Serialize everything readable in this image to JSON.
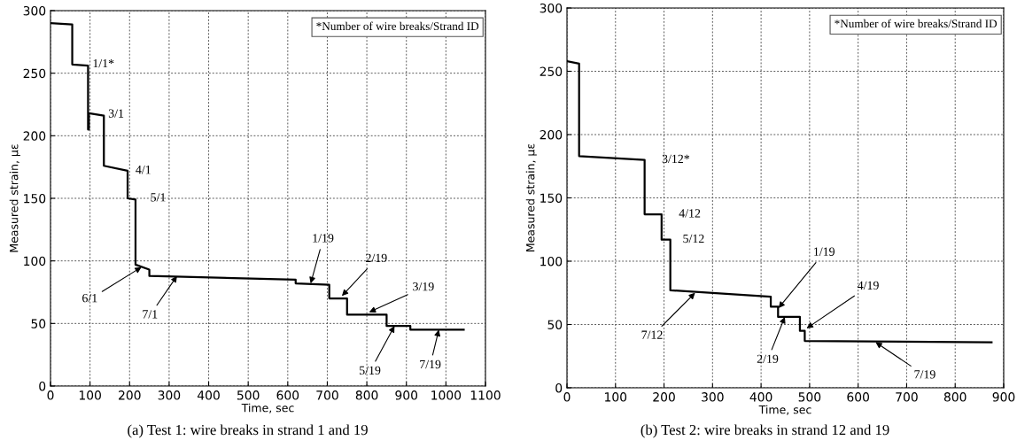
{
  "chart_data": [
    {
      "type": "line",
      "title": "(a) Test 1: wire breaks in strand 1 and 19",
      "xlabel": "Time, sec",
      "ylabel": "Measured strain, με",
      "series": [
        {
          "color": "#000000",
          "x": [
            0,
            55,
            55,
            95,
            95,
            97,
            97,
            135,
            135,
            195,
            195,
            215,
            215,
            250,
            250,
            620,
            620,
            705,
            705,
            750,
            750,
            850,
            850,
            910,
            910,
            1045
          ],
          "values": [
            290,
            289,
            257,
            256,
            205,
            205,
            218,
            216,
            176,
            172,
            150,
            149,
            97,
            93,
            88,
            85,
            82,
            81,
            70,
            70,
            57,
            57,
            48,
            48,
            45,
            45
          ]
        }
      ],
      "xlim": [
        0,
        1100
      ],
      "xticks": [
        0,
        100,
        200,
        300,
        400,
        500,
        600,
        700,
        800,
        900,
        1000,
        1100
      ],
      "ylim": [
        0,
        300
      ],
      "yticks": [
        0,
        50,
        100,
        150,
        200,
        250,
        300
      ],
      "grid": true,
      "line_style": "solid",
      "marker": "none",
      "annotations": [
        "*Number of wire breaks/Strand ID",
        {
          "text": "1/1*",
          "x": 75,
          "y": 257
        },
        {
          "text": "3/1",
          "x": 115,
          "y": 217
        },
        {
          "text": "4/1",
          "x": 190,
          "y": 172
        },
        {
          "text": "5/1",
          "x": 215,
          "y": 150
        },
        {
          "text": "6/1",
          "x": 230,
          "y": 95
        },
        {
          "text": "7/1",
          "x": 320,
          "y": 88
        },
        {
          "text": "1/19",
          "x": 658,
          "y": 82
        },
        {
          "text": "2/19",
          "x": 737,
          "y": 72
        },
        {
          "text": "3/19",
          "x": 806,
          "y": 59
        },
        {
          "text": "5/19",
          "x": 870,
          "y": 48
        },
        {
          "text": "7/19",
          "x": 982,
          "y": 45
        }
      ]
    },
    {
      "type": "line",
      "title": "(b) Test 2: wire breaks in strand 12 and 19",
      "xlabel": "Time, sec",
      "ylabel": "Measured strain, με",
      "series": [
        {
          "color": "#000000",
          "x": [
            0,
            25,
            25,
            160,
            160,
            195,
            195,
            213,
            213,
            420,
            420,
            435,
            435,
            480,
            480,
            490,
            490,
            875
          ],
          "values": [
            258,
            256,
            183,
            180,
            137,
            137,
            117,
            117,
            77,
            72,
            64,
            64,
            56,
            56,
            45,
            45,
            37,
            36
          ]
        }
      ],
      "xlim": [
        0,
        900
      ],
      "xticks": [
        0,
        100,
        200,
        300,
        400,
        500,
        600,
        700,
        800,
        900
      ],
      "ylim": [
        0,
        300
      ],
      "yticks": [
        0,
        50,
        100,
        150,
        200,
        250,
        300
      ],
      "grid": true,
      "line_style": "solid",
      "marker": "none",
      "annotations": [
        "*Number of wire breaks/Strand ID",
        {
          "text": "3/12*",
          "x": 160,
          "y": 180
        },
        {
          "text": "4/12",
          "x": 195,
          "y": 137
        },
        {
          "text": "5/12",
          "x": 213,
          "y": 117
        },
        {
          "text": "7/12",
          "x": 264,
          "y": 75
        },
        {
          "text": "1/19",
          "x": 436,
          "y": 63
        },
        {
          "text": "2/19",
          "x": 449,
          "y": 56
        },
        {
          "text": "4/19",
          "x": 494,
          "y": 47
        },
        {
          "text": "7/19",
          "x": 636,
          "y": 36
        }
      ]
    }
  ]
}
